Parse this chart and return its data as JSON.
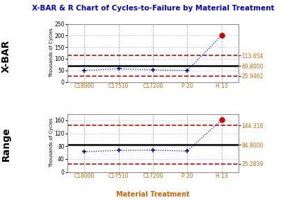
{
  "title": "X-BAR & R Chart of Cycles-to-Failure by Material Treatment",
  "xlabel": "Material Treatment",
  "categories": [
    "C18000",
    "C17510",
    "C17200",
    "P 20",
    "H 13"
  ],
  "xbar_values": [
    50,
    57,
    52,
    50,
    200
  ],
  "xbar_ucl": 113.654,
  "xbar_cl": 69.8,
  "xbar_lcl": 25.9462,
  "xbar_ylim": [
    0,
    250
  ],
  "xbar_yticks": [
    0,
    50,
    100,
    150,
    200,
    250
  ],
  "range_values": [
    63,
    67,
    68,
    65,
    162
  ],
  "range_ucl": 144.318,
  "range_cl": 84.8,
  "range_lcl": 25.2839,
  "range_ylim": [
    0,
    180
  ],
  "range_yticks": [
    0,
    40,
    80,
    120,
    160
  ],
  "out_of_control_xbar": [
    4
  ],
  "out_of_control_range": [
    4
  ],
  "line_color": "#0000cc",
  "control_line_color": "#000000",
  "limit_line_color": "#cc0000",
  "out_point_color": "#cc0000",
  "normal_point_color": "#0000cc",
  "grid_color": "#b0b0b0",
  "background_color": "#ffffff",
  "title_color": "#0000cc",
  "axis_label_color": "#cc6600",
  "right_label_color": "#cc6600",
  "left_panel_label_color": "#000000",
  "ylabel_text": "Thousands of Cycles",
  "left_label_xbar": "X-BAR",
  "left_label_range": "Range",
  "xbar_ucl_label": "113.654",
  "xbar_cl_label": "69.8000",
  "xbar_lcl_label": "25.9462",
  "range_ucl_label": "144.318",
  "range_cl_label": "84.8000",
  "range_lcl_label": "25.2839"
}
